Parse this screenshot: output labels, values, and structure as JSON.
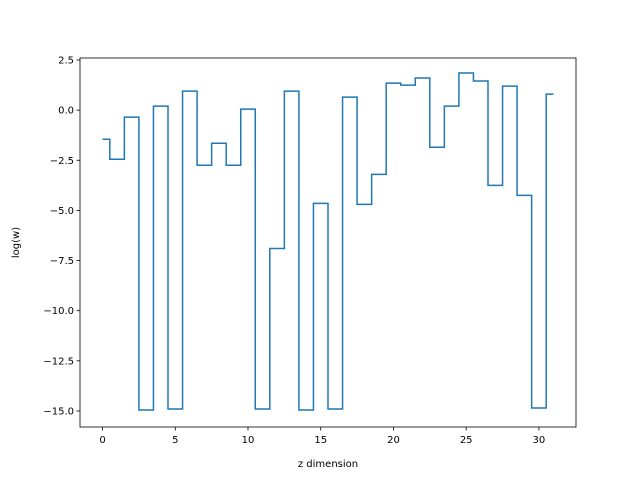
{
  "chart_data": {
    "type": "line",
    "drawstyle": "steps",
    "title": "",
    "xlabel": "z dimension",
    "ylabel": "log(w)",
    "xlim": [
      -1.55,
      32.55
    ],
    "ylim": [
      -15.8,
      2.6
    ],
    "xticks": [
      0,
      5,
      10,
      15,
      20,
      25,
      30
    ],
    "xtick_labels": [
      "0",
      "5",
      "10",
      "15",
      "20",
      "25",
      "30"
    ],
    "yticks": [
      2.5,
      0.0,
      -2.5,
      -5.0,
      -7.5,
      -10.0,
      -12.5,
      -15.0
    ],
    "ytick_labels": [
      "2.5",
      "0.0",
      "−2.5",
      "−5.0",
      "−7.5",
      "−10.0",
      "−12.5",
      "−15.0"
    ],
    "grid": false,
    "color": "#1f77b4",
    "series": [
      {
        "name": "",
        "x": [
          0,
          1,
          2,
          3,
          4,
          5,
          6,
          7,
          8,
          9,
          10,
          11,
          12,
          13,
          14,
          15,
          16,
          17,
          18,
          19,
          20,
          21,
          22,
          23,
          24,
          25,
          26,
          27,
          28,
          29,
          30,
          31
        ],
        "values": [
          -1.45,
          -2.45,
          -0.35,
          -14.95,
          0.2,
          -14.9,
          0.95,
          -2.75,
          -1.65,
          -2.75,
          0.05,
          -14.9,
          -6.9,
          0.95,
          -14.95,
          -4.65,
          -14.9,
          0.65,
          -4.7,
          -3.2,
          1.35,
          1.25,
          1.6,
          -1.85,
          0.2,
          1.85,
          1.45,
          -3.75,
          1.2,
          -4.25,
          -14.85,
          0.8
        ]
      }
    ]
  }
}
